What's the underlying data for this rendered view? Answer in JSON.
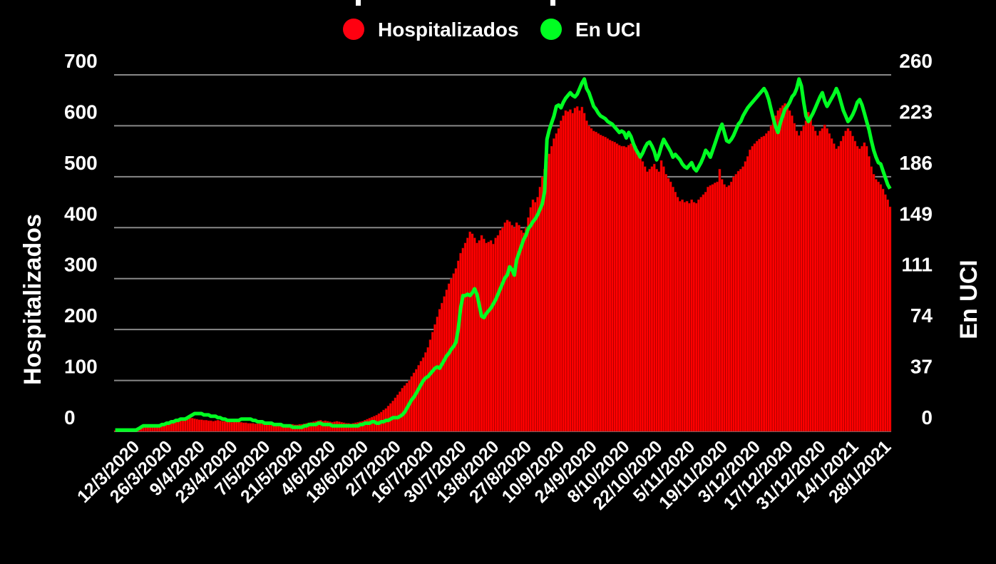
{
  "chart_data": {
    "type": "bar+line",
    "title": "",
    "legend": {
      "position": "top",
      "entries": [
        "Hospitalizados",
        "En UCI"
      ]
    },
    "ylabel_left": "Hospitalizados",
    "ylabel_right": "En UCI",
    "ylim_left": [
      0,
      700
    ],
    "ylim_right": [
      0,
      260
    ],
    "yticks_left": [
      "0",
      "100",
      "200",
      "300",
      "400",
      "500",
      "600",
      "700"
    ],
    "yticks_right": [
      "0",
      "37",
      "74",
      "111",
      "149",
      "186",
      "223",
      "260"
    ],
    "grid": true,
    "x_ticks": [
      "12/3/2020",
      "26/3/2020",
      "9/4/2020",
      "23/4/2020",
      "7/5/2020",
      "21/5/2020",
      "4/6/2020",
      "18/6/2020",
      "2/7/2020",
      "16/7/2020",
      "30/7/2020",
      "13/8/2020",
      "27/8/2020",
      "10/9/2020",
      "24/9/2020",
      "8/10/2020",
      "22/10/2020",
      "5/11/2020",
      "19/11/2020",
      "3/12/2020",
      "17/12/2020",
      "31/12/2020",
      "14/1/2021",
      "28/1/2021"
    ],
    "colors": {
      "Hospitalizados": "#ff0000",
      "En UCI": "#00ff22",
      "background": "#000000",
      "grid": "#888888"
    },
    "series": [
      {
        "name": "Hospitalizados",
        "type": "bar",
        "axis": "left",
        "values": [
          2,
          2,
          3,
          3,
          4,
          4,
          5,
          5,
          5,
          6,
          6,
          7,
          8,
          9,
          10,
          11,
          12,
          12,
          13,
          14,
          15,
          15,
          16,
          17,
          18,
          19,
          20,
          21,
          22,
          24,
          25,
          26,
          27,
          26,
          25,
          24,
          23,
          23,
          22,
          22,
          21,
          21,
          20,
          21,
          22,
          21,
          20,
          20,
          19,
          19,
          18,
          19,
          20,
          19,
          18,
          17,
          17,
          16,
          16,
          16,
          15,
          15,
          16,
          15,
          14,
          15,
          15,
          14,
          14,
          15,
          14,
          13,
          14,
          14,
          13,
          13,
          14,
          13,
          13,
          14,
          14,
          15,
          16,
          17,
          18,
          19,
          20,
          21,
          22,
          20,
          21,
          20,
          19,
          18,
          19,
          20,
          19,
          18,
          17,
          16,
          16,
          15,
          16,
          17,
          18,
          19,
          20,
          22,
          24,
          26,
          28,
          30,
          32,
          35,
          38,
          42,
          45,
          50,
          55,
          60,
          66,
          72,
          78,
          85,
          90,
          95,
          100,
          108,
          115,
          122,
          130,
          138,
          145,
          155,
          165,
          180,
          195,
          210,
          225,
          240,
          252,
          265,
          278,
          290,
          300,
          310,
          320,
          335,
          350,
          360,
          370,
          380,
          392,
          388,
          380,
          370,
          375,
          385,
          378,
          370,
          372,
          375,
          368,
          380,
          385,
          395,
          400,
          410,
          415,
          412,
          405,
          400,
          410,
          405,
          395,
          390,
          400,
          420,
          440,
          455,
          450,
          460,
          480,
          500,
          515,
          530,
          545,
          560,
          575,
          585,
          595,
          610,
          620,
          630,
          628,
          632,
          625,
          635,
          638,
          630,
          637,
          625,
          610,
          600,
          595,
          590,
          588,
          585,
          582,
          580,
          578,
          575,
          572,
          570,
          568,
          565,
          562,
          560,
          560,
          558,
          562,
          565,
          567,
          560,
          550,
          540,
          530,
          520,
          510,
          515,
          520,
          525,
          515,
          510,
          532,
          520,
          505,
          497,
          490,
          480,
          470,
          460,
          452,
          455,
          450,
          452,
          448,
          455,
          450,
          448,
          455,
          460,
          465,
          470,
          480,
          483,
          485,
          488,
          490,
          515,
          495,
          485,
          480,
          483,
          490,
          500,
          505,
          511,
          515,
          520,
          530,
          540,
          553,
          560,
          565,
          570,
          574,
          578,
          580,
          585,
          590,
          600,
          610,
          620,
          630,
          635,
          640,
          644,
          640,
          630,
          620,
          605,
          590,
          581,
          590,
          600,
          610,
          627,
          615,
          600,
          590,
          581,
          590,
          595,
          602,
          595,
          585,
          575,
          565,
          555,
          560,
          570,
          580,
          590,
          595,
          590,
          580,
          570,
          560,
          555,
          560,
          567,
          560,
          540,
          520,
          505,
          495,
          490,
          485,
          476,
          465,
          455,
          441
        ]
      },
      {
        "name": "En UCI",
        "type": "line",
        "axis": "right",
        "values": [
          1,
          1,
          1,
          1,
          1,
          1,
          1,
          1,
          1,
          1,
          2,
          3,
          4,
          4,
          4,
          4,
          4,
          4,
          4,
          4,
          5,
          5,
          6,
          6,
          7,
          7,
          8,
          8,
          9,
          9,
          9,
          10,
          11,
          12,
          13,
          13,
          13,
          13,
          12,
          12,
          12,
          11,
          11,
          11,
          10,
          10,
          9,
          9,
          8,
          8,
          8,
          8,
          8,
          8,
          9,
          9,
          9,
          9,
          9,
          8,
          8,
          7,
          7,
          7,
          6,
          6,
          6,
          6,
          5,
          5,
          5,
          5,
          4,
          4,
          4,
          4,
          3,
          3,
          3,
          3,
          3,
          4,
          4,
          5,
          5,
          5,
          5,
          6,
          6,
          5,
          5,
          5,
          5,
          4,
          4,
          4,
          4,
          4,
          4,
          4,
          4,
          4,
          4,
          4,
          4,
          5,
          5,
          6,
          6,
          6,
          7,
          7,
          6,
          6,
          7,
          7,
          8,
          8,
          9,
          10,
          10,
          10,
          11,
          12,
          14,
          17,
          20,
          23,
          25,
          28,
          31,
          34,
          37,
          39,
          40,
          42,
          44,
          46,
          47,
          46,
          49,
          52,
          55,
          57,
          60,
          62,
          65,
          75,
          90,
          99,
          99,
          100,
          99,
          101,
          104,
          100,
          92,
          84,
          83,
          86,
          88,
          90,
          93,
          96,
          100,
          104,
          108,
          112,
          114,
          120,
          118,
          114,
          125,
          130,
          135,
          140,
          143,
          148,
          150,
          153,
          155,
          158,
          162,
          166,
          175,
          213,
          220,
          225,
          230,
          237,
          238,
          236,
          240,
          243,
          245,
          247,
          245,
          244,
          246,
          250,
          254,
          257,
          250,
          247,
          242,
          237,
          235,
          232,
          230,
          229,
          228,
          226,
          225,
          224,
          222,
          220,
          218,
          219,
          218,
          214,
          218,
          215,
          210,
          206,
          203,
          200,
          203,
          207,
          210,
          211,
          208,
          204,
          198,
          202,
          208,
          213,
          210,
          207,
          204,
          200,
          202,
          200,
          198,
          195,
          193,
          192,
          194,
          196,
          192,
          190,
          193,
          196,
          200,
          205,
          203,
          200,
          205,
          210,
          215,
          220,
          224,
          218,
          212,
          211,
          213,
          216,
          220,
          224,
          226,
          230,
          233,
          236,
          238,
          240,
          242,
          244,
          246,
          248,
          250,
          247,
          242,
          235,
          228,
          222,
          218,
          225,
          230,
          235,
          237,
          240,
          244,
          246,
          250,
          257,
          252,
          240,
          230,
          226,
          229,
          232,
          236,
          240,
          244,
          247,
          241,
          237,
          240,
          243,
          246,
          250,
          246,
          240,
          234,
          230,
          226,
          228,
          231,
          235,
          240,
          242,
          238,
          232,
          226,
          220,
          212,
          205,
          200,
          196,
          195,
          190,
          185,
          180,
          177
        ]
      }
    ]
  }
}
